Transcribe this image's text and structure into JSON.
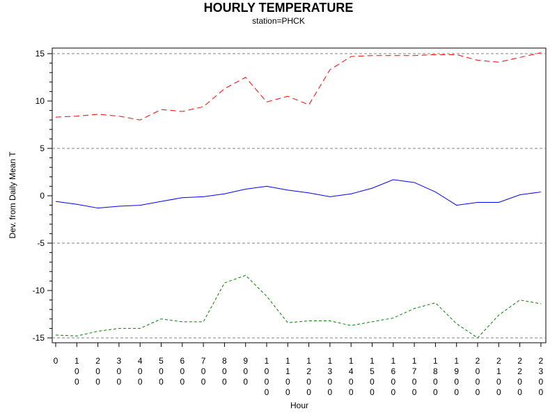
{
  "chart_data": {
    "type": "line",
    "title": "HOURLY TEMPERATURE",
    "subtitle": "station=PHCK",
    "xlabel": "Hour",
    "ylabel": "Dev. from Daily Mean T",
    "x": [
      0,
      100,
      200,
      300,
      400,
      500,
      600,
      700,
      800,
      900,
      1000,
      1100,
      1200,
      1300,
      1400,
      1500,
      1600,
      1700,
      1800,
      1900,
      2000,
      2100,
      2200,
      2300
    ],
    "x_tick_labels": [
      "0",
      "100",
      "200",
      "300",
      "400",
      "500",
      "600",
      "700",
      "800",
      "900",
      "1000",
      "1100",
      "1200",
      "1300",
      "1400",
      "1500",
      "1600",
      "1700",
      "1800",
      "1900",
      "2000",
      "2100",
      "2200",
      "2300"
    ],
    "ylim": [
      -15,
      15
    ],
    "y_ticks": [
      -15,
      -10,
      -5,
      0,
      5,
      10,
      15
    ],
    "reference_lines": [
      -15,
      -5,
      5,
      15
    ],
    "series": [
      {
        "color": "#ff0000",
        "style": "dashed",
        "values": [
          8.3,
          8.4,
          8.6,
          8.4,
          8.0,
          9.1,
          8.9,
          9.4,
          11.3,
          12.5,
          9.9,
          10.5,
          9.6,
          13.3,
          14.7,
          14.8,
          14.8,
          14.8,
          14.9,
          14.9,
          14.3,
          14.1,
          14.6,
          15.1
        ]
      },
      {
        "color": "#0000ff",
        "style": "solid",
        "values": [
          -0.6,
          -0.9,
          -1.3,
          -1.1,
          -1.0,
          -0.6,
          -0.2,
          -0.1,
          0.2,
          0.7,
          1.0,
          0.6,
          0.3,
          -0.1,
          0.2,
          0.8,
          1.7,
          1.4,
          0.4,
          -1.0,
          -0.7,
          -0.7,
          0.1,
          0.4
        ]
      },
      {
        "color": "#008000",
        "style": "dashed",
        "values": [
          -14.7,
          -14.8,
          -14.3,
          -14.0,
          -14.0,
          -13.0,
          -13.3,
          -13.3,
          -9.2,
          -8.4,
          -10.6,
          -13.4,
          -13.2,
          -13.2,
          -13.7,
          -13.3,
          -12.9,
          -11.9,
          -11.3,
          -13.5,
          -15.0,
          -12.6,
          -11.0,
          -11.4
        ]
      }
    ]
  }
}
